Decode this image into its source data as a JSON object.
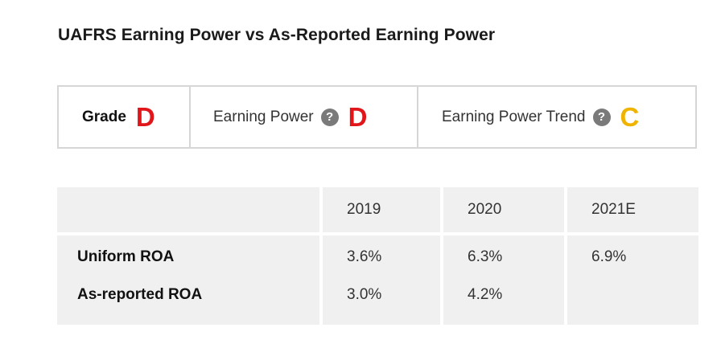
{
  "title": "UAFRS Earning Power vs As-Reported Earning Power",
  "grades": {
    "grade_label": "Grade",
    "grade_value": "D",
    "earning_power_label": "Earning Power",
    "earning_power_value": "D",
    "trend_label": "Earning Power Trend",
    "trend_value": "C",
    "help_glyph": "?",
    "colors": {
      "D": "#e0161b",
      "C": "#f0b400"
    }
  },
  "table": {
    "columns": [
      "",
      "2019",
      "2020",
      "2021E"
    ],
    "rows": [
      {
        "label": "Uniform ROA",
        "values": [
          "3.6%",
          "6.3%",
          "6.9%"
        ]
      },
      {
        "label": "As-reported ROA",
        "values": [
          "3.0%",
          "4.2%",
          ""
        ]
      }
    ]
  }
}
